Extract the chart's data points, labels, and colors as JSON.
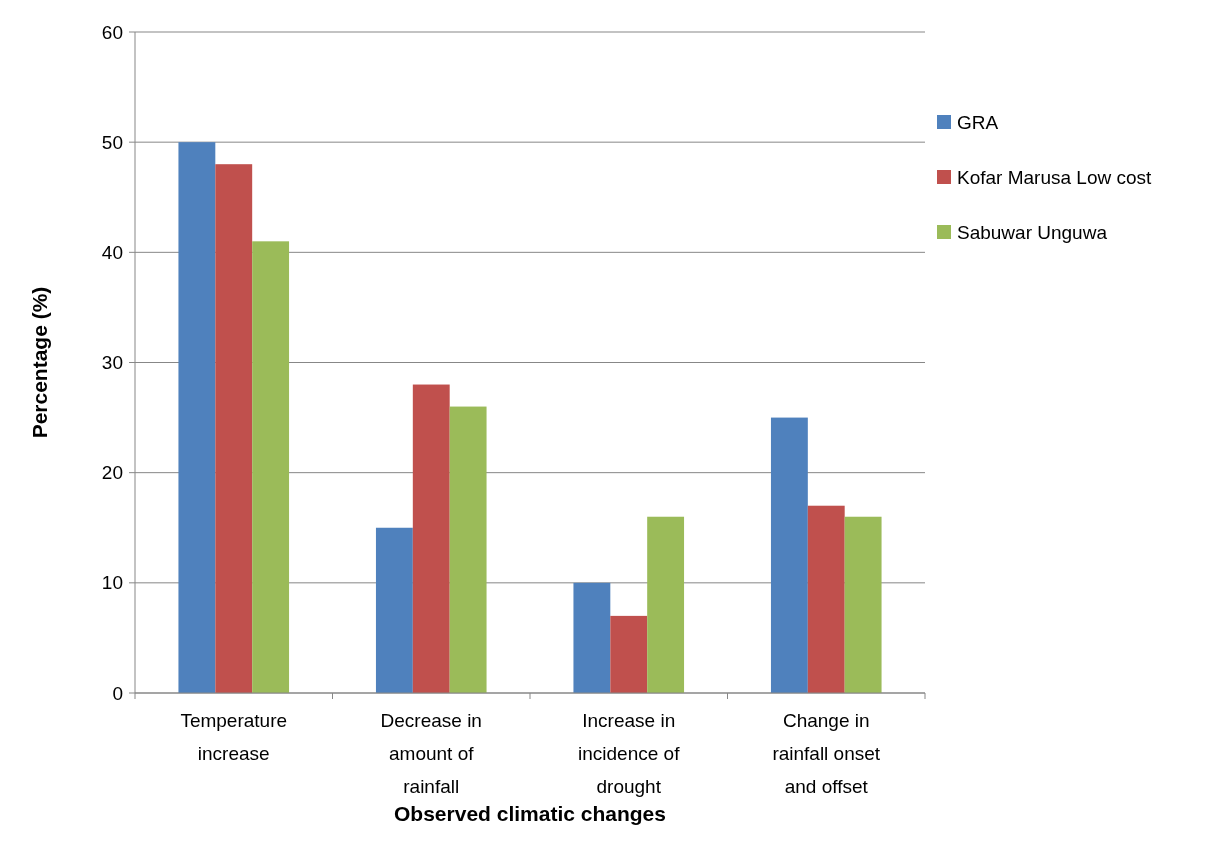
{
  "chart_data": {
    "type": "bar",
    "xlabel": "Observed climatic changes",
    "ylabel": "Percentage (%)",
    "categories": [
      "Temperature increase",
      "Decrease in amount of rainfall",
      "Increase in incidence of drought",
      "Change in rainfall onset and offset"
    ],
    "series": [
      {
        "name": "GRA",
        "color": "#4f81bd",
        "values": [
          50,
          15,
          10,
          25
        ]
      },
      {
        "name": "Kofar Marusa Low cost",
        "color": "#c0504d",
        "values": [
          48,
          28,
          7,
          17
        ]
      },
      {
        "name": "Sabuwar Unguwa",
        "color": "#9bbb59",
        "values": [
          41,
          26,
          16,
          16
        ]
      }
    ],
    "ylim": [
      0,
      60
    ],
    "yticks": [
      0,
      10,
      20,
      30,
      40,
      50,
      60
    ],
    "grid": "y",
    "legend": "right"
  }
}
